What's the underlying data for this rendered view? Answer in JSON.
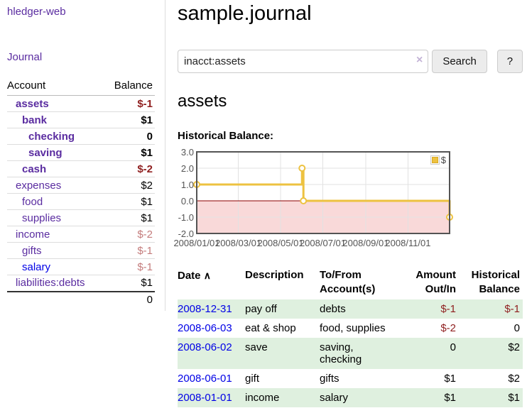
{
  "colors": {
    "link_purple": "#5a2ca0",
    "link_blue": "#0000e6",
    "negative": "#8f1f1f",
    "negative_dim": "#c47c7c",
    "row_shade_green": "#dff0df",
    "series_gold": "#edc240",
    "negative_region_pink": "#f9d9d9",
    "zero_line_red": "#8b0000",
    "grid_line": "#e2e2e2",
    "chart_border": "#545454"
  },
  "sidebar": {
    "brand": "hledger-web",
    "journal_link": "Journal",
    "accounts_table": {
      "header": {
        "account": "Account",
        "balance": "Balance"
      },
      "rows": [
        {
          "name": "assets",
          "level": 1,
          "bold": true,
          "balance": "$-1",
          "balance_style": "neg",
          "link": "purple"
        },
        {
          "name": "bank",
          "level": 2,
          "bold": true,
          "balance": "$1",
          "balance_style": "",
          "link": "purple"
        },
        {
          "name": "checking",
          "level": 3,
          "bold": true,
          "balance": "0",
          "balance_style": "",
          "link": "purple"
        },
        {
          "name": "saving",
          "level": 3,
          "bold": true,
          "balance": "$1",
          "balance_style": "",
          "link": "purple"
        },
        {
          "name": "cash",
          "level": 2,
          "bold": true,
          "balance": "$-2",
          "balance_style": "neg",
          "link": "purple"
        },
        {
          "name": "expenses",
          "level": 1,
          "bold": false,
          "balance": "$2",
          "balance_style": "",
          "link": "purple"
        },
        {
          "name": "food",
          "level": 2,
          "bold": false,
          "balance": "$1",
          "balance_style": "",
          "link": "purple"
        },
        {
          "name": "supplies",
          "level": 2,
          "bold": false,
          "balance": "$1",
          "balance_style": "",
          "link": "purple"
        },
        {
          "name": "income",
          "level": 1,
          "bold": false,
          "balance": "$-2",
          "balance_style": "negdim",
          "link": "purple"
        },
        {
          "name": "gifts",
          "level": 2,
          "bold": false,
          "balance": "$-1",
          "balance_style": "negdim",
          "link": "purple"
        },
        {
          "name": "salary",
          "level": 2,
          "bold": false,
          "balance": "$-1",
          "balance_style": "negdim",
          "link": "blue"
        },
        {
          "name": "liabilities:debts",
          "level": 1,
          "bold": false,
          "balance": "$1",
          "balance_style": "",
          "link": "purple"
        }
      ],
      "total": "0"
    }
  },
  "header": {
    "title": "sample.journal"
  },
  "search": {
    "value": "inacct:assets",
    "clear_icon": "×",
    "search_button": "Search",
    "help_button": "?"
  },
  "account_page": {
    "heading": "assets",
    "chart_title": "Historical Balance:"
  },
  "chart_data": {
    "type": "line",
    "step": true,
    "title": "Historical Balance",
    "series": [
      {
        "name": "$",
        "color": "#edc240",
        "points": [
          [
            "2008/01/01",
            1
          ],
          [
            "2008/06/01",
            2
          ],
          [
            "2008/06/03",
            0
          ],
          [
            "2008/12/31",
            -1
          ]
        ]
      }
    ],
    "x_range": [
      "2008/01/01",
      "2008/12/31"
    ],
    "x_tick_labels": [
      "2008/01/01",
      "2008/03/01",
      "2008/05/01",
      "2008/07/01",
      "2008/09/01",
      "2008/11/01"
    ],
    "y_tick_labels": [
      "3.0",
      "2.0",
      "1.0",
      "0.0",
      "-1.0",
      "-2.0"
    ],
    "y_ticks": [
      3,
      2,
      1,
      0,
      -1,
      -2
    ],
    "ylim": [
      -2,
      3
    ],
    "grid": true,
    "legend_position": "top-right",
    "negative_region": true
  },
  "register": {
    "columns": {
      "date": "Date",
      "description": "Description",
      "tofrom": "To/From Account(s)",
      "amount": "Amount Out/In",
      "balance": "Historical Balance"
    },
    "sort_indicator": "∧",
    "rows": [
      {
        "date": "2008-12-31",
        "description": "pay off",
        "accounts": "debts",
        "amount": "$-1",
        "amount_style": "neg",
        "balance": "$-1",
        "balance_style": "neg",
        "shaded": true
      },
      {
        "date": "2008-06-03",
        "description": "eat & shop",
        "accounts": "food, supplies",
        "amount": "$-2",
        "amount_style": "neg",
        "balance": "0",
        "balance_style": "",
        "shaded": false
      },
      {
        "date": "2008-06-02",
        "description": "save",
        "accounts": "saving, checking",
        "amount": "0",
        "amount_style": "",
        "balance": "$2",
        "balance_style": "",
        "shaded": true
      },
      {
        "date": "2008-06-01",
        "description": "gift",
        "accounts": "gifts",
        "amount": "$1",
        "amount_style": "",
        "balance": "$2",
        "balance_style": "",
        "shaded": false
      },
      {
        "date": "2008-01-01",
        "description": "income",
        "accounts": "salary",
        "amount": "$1",
        "amount_style": "",
        "balance": "$1",
        "balance_style": "",
        "shaded": true
      }
    ]
  }
}
